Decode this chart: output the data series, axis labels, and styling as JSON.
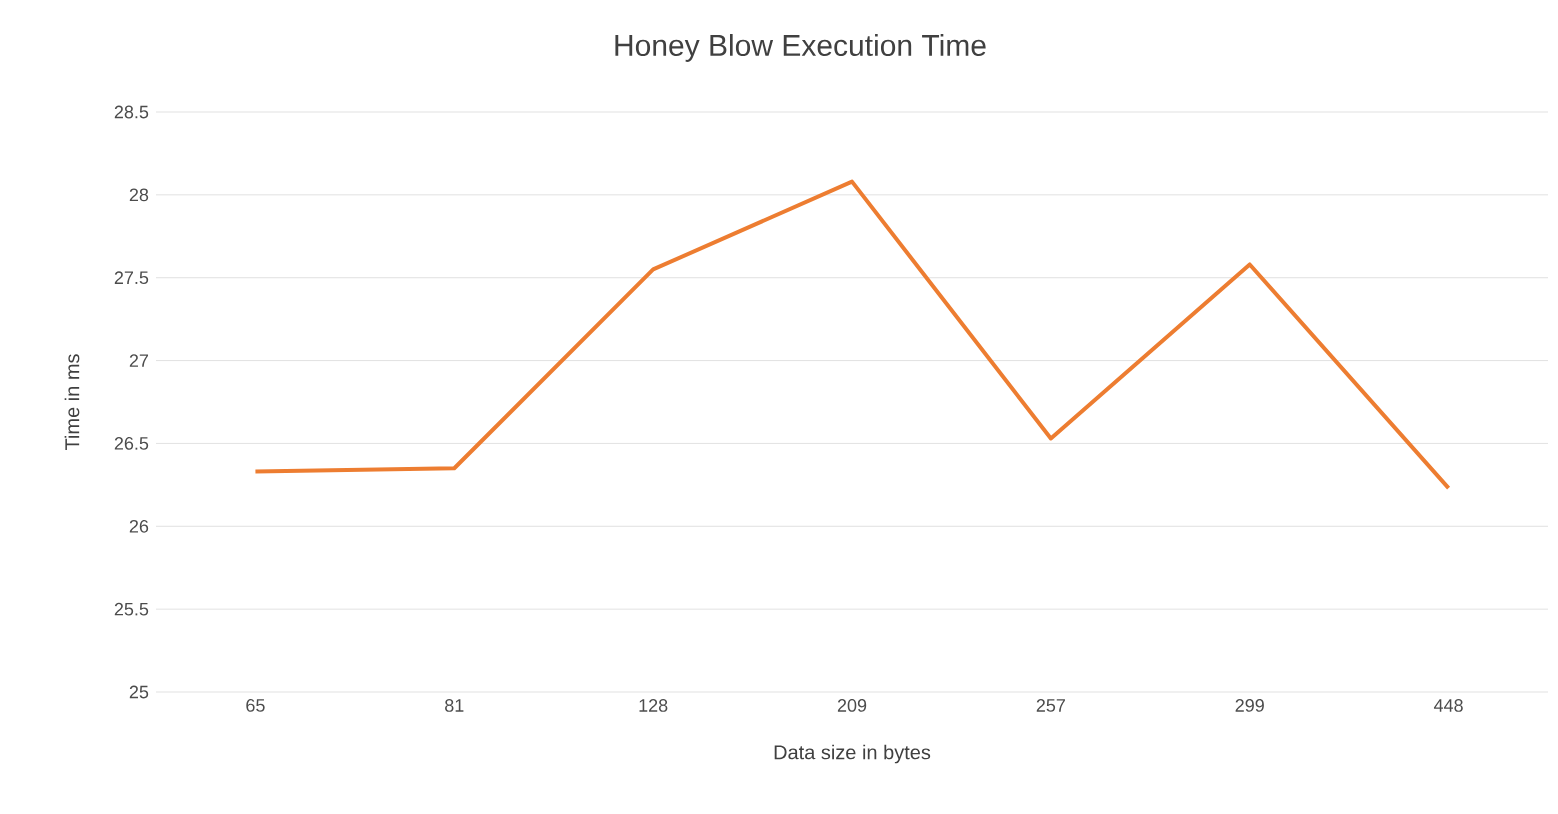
{
  "chart_data": {
    "type": "line",
    "title": "Honey Blow Execution Time",
    "xlabel": "Data size in bytes",
    "ylabel": "Time in ms",
    "categories": [
      "65",
      "81",
      "128",
      "209",
      "257",
      "299",
      "448"
    ],
    "series": [
      {
        "color": "#ed7d31",
        "values": [
          26.33,
          26.35,
          27.55,
          28.08,
          26.53,
          27.58,
          26.23
        ]
      }
    ],
    "ylim": [
      25,
      28.5
    ],
    "yticks": [
      25,
      25.5,
      26,
      26.5,
      27,
      27.5,
      28,
      28.5
    ],
    "grid": "y"
  }
}
